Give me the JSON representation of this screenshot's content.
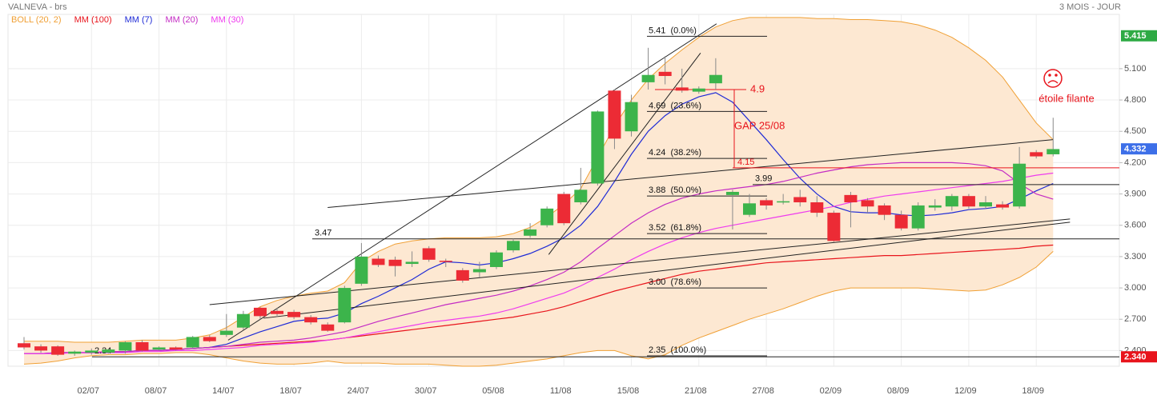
{
  "chart_data": {
    "type": "candlestick",
    "title": "VALNEVA - brs",
    "subtitle": "3 MOIS - JOUR",
    "categories": [
      null,
      null,
      null,
      null,
      "02/07",
      null,
      null,
      null,
      "08/07",
      null,
      null,
      null,
      "14/07",
      null,
      null,
      null,
      "18/07",
      null,
      null,
      null,
      "24/07",
      null,
      null,
      null,
      "30/07",
      null,
      null,
      null,
      "05/08",
      null,
      null,
      null,
      "11/08",
      null,
      null,
      null,
      "15/08",
      null,
      null,
      null,
      "21/08",
      null,
      null,
      null,
      "27/08",
      null,
      null,
      null,
      "02/09",
      null,
      null,
      null,
      "08/09",
      null,
      null,
      null,
      "12/09",
      null,
      null,
      null,
      "18/09",
      null
    ],
    "open": [
      2.47,
      2.44,
      2.44,
      2.37,
      2.38,
      2.38,
      2.4,
      2.48,
      2.41,
      2.43,
      2.43,
      2.53,
      2.55,
      2.62,
      2.81,
      2.78,
      2.77,
      2.72,
      2.65,
      2.67,
      3.04,
      3.28,
      3.27,
      3.23,
      3.38,
      3.26,
      3.17,
      3.15,
      3.2,
      3.36,
      3.5,
      3.6,
      3.9,
      3.82,
      4.0,
      4.89,
      4.5,
      4.97,
      5.07,
      4.92,
      4.88,
      4.96,
      3.89,
      3.7,
      3.84,
      3.82,
      3.87,
      3.82,
      3.72,
      3.89,
      3.84,
      3.79,
      3.7,
      3.57,
      3.77,
      3.78,
      3.88,
      3.78,
      3.8,
      3.78,
      4.3,
      4.28
    ],
    "high": [
      2.53,
      2.46,
      2.45,
      2.4,
      2.42,
      2.42,
      2.49,
      2.5,
      2.44,
      2.44,
      2.54,
      2.55,
      2.75,
      2.78,
      2.82,
      2.81,
      2.79,
      2.74,
      2.67,
      3.02,
      3.43,
      3.31,
      3.3,
      3.35,
      3.4,
      3.28,
      3.19,
      3.25,
      3.36,
      3.47,
      3.62,
      3.78,
      3.92,
      4.15,
      4.7,
      4.9,
      4.85,
      5.3,
      5.22,
      5.1,
      4.93,
      5.2,
      3.94,
      3.9,
      3.86,
      3.9,
      3.94,
      3.88,
      3.74,
      3.92,
      3.86,
      3.81,
      3.74,
      3.82,
      3.85,
      3.9,
      3.9,
      3.88,
      3.83,
      4.35,
      4.32,
      4.63
    ],
    "low": [
      2.41,
      2.38,
      2.35,
      2.35,
      2.36,
      2.37,
      2.37,
      2.39,
      2.4,
      2.4,
      2.42,
      2.48,
      2.53,
      2.6,
      2.7,
      2.72,
      2.7,
      2.65,
      2.58,
      2.66,
      3.02,
      3.2,
      3.11,
      3.2,
      3.25,
      3.2,
      3.05,
      3.1,
      3.18,
      3.34,
      3.48,
      3.58,
      3.6,
      3.8,
      3.98,
      4.33,
      4.45,
      4.9,
      4.95,
      4.87,
      4.86,
      4.9,
      3.56,
      3.68,
      3.75,
      3.8,
      3.78,
      3.68,
      3.44,
      3.58,
      3.72,
      3.65,
      3.55,
      3.55,
      3.74,
      3.74,
      3.76,
      3.76,
      3.75,
      3.76,
      4.24,
      4.26
    ],
    "close": [
      2.43,
      2.4,
      2.36,
      2.39,
      2.4,
      2.41,
      2.48,
      2.4,
      2.43,
      2.41,
      2.53,
      2.49,
      2.59,
      2.75,
      2.73,
      2.75,
      2.72,
      2.67,
      2.59,
      3.0,
      3.3,
      3.22,
      3.21,
      3.25,
      3.27,
      3.25,
      3.07,
      3.18,
      3.34,
      3.45,
      3.56,
      3.76,
      3.62,
      3.94,
      4.69,
      4.43,
      4.78,
      5.04,
      5.03,
      4.89,
      4.91,
      5.04,
      3.92,
      3.81,
      3.79,
      3.83,
      3.82,
      3.72,
      3.45,
      3.82,
      3.78,
      3.7,
      3.57,
      3.79,
      3.79,
      3.88,
      3.78,
      3.82,
      3.77,
      4.19,
      4.26,
      4.33
    ],
    "up_color": "#3cb44b",
    "down_color": "#ec2b35",
    "series": [
      {
        "name": "BOLL (20, 2)",
        "color": "#f0a035",
        "fill": "#fde8d2",
        "upper": [
          2.49,
          2.49,
          2.49,
          2.48,
          2.48,
          2.48,
          2.49,
          2.5,
          2.5,
          2.5,
          2.52,
          2.55,
          2.62,
          2.72,
          2.82,
          2.88,
          2.92,
          2.95,
          2.97,
          3.05,
          3.25,
          3.35,
          3.42,
          3.45,
          3.47,
          3.48,
          3.48,
          3.48,
          3.49,
          3.52,
          3.58,
          3.68,
          3.8,
          3.95,
          4.25,
          4.55,
          4.8,
          5.0,
          5.15,
          5.28,
          5.4,
          5.5,
          5.56,
          5.59,
          5.59,
          5.59,
          5.59,
          5.58,
          5.58,
          5.57,
          5.57,
          5.56,
          5.55,
          5.52,
          5.47,
          5.4,
          5.3,
          5.18,
          5.02,
          4.8,
          4.58,
          4.42
        ],
        "lower": [
          2.27,
          2.28,
          2.3,
          2.33,
          2.35,
          2.36,
          2.36,
          2.37,
          2.37,
          2.38,
          2.38,
          2.36,
          2.33,
          2.3,
          2.28,
          2.27,
          2.27,
          2.28,
          2.3,
          2.28,
          2.28,
          2.28,
          2.27,
          2.27,
          2.27,
          2.26,
          2.25,
          2.25,
          2.26,
          2.28,
          2.3,
          2.32,
          2.35,
          2.38,
          2.4,
          2.4,
          2.35,
          2.32,
          2.36,
          2.45,
          2.52,
          2.58,
          2.64,
          2.7,
          2.75,
          2.8,
          2.86,
          2.92,
          2.97,
          3.0,
          3.0,
          3.0,
          3.0,
          3.0,
          2.99,
          2.98,
          2.97,
          2.98,
          3.03,
          3.1,
          3.2,
          3.35
        ]
      },
      {
        "name": "MM (100)",
        "color": "#e8141c",
        "values": [
          2.37,
          2.37,
          2.38,
          2.38,
          2.38,
          2.39,
          2.39,
          2.4,
          2.4,
          2.41,
          2.42,
          2.43,
          2.44,
          2.45,
          2.46,
          2.47,
          2.48,
          2.49,
          2.5,
          2.52,
          2.54,
          2.56,
          2.58,
          2.6,
          2.62,
          2.64,
          2.66,
          2.68,
          2.7,
          2.72,
          2.75,
          2.78,
          2.82,
          2.87,
          2.92,
          2.97,
          3.01,
          3.05,
          3.09,
          3.13,
          3.16,
          3.18,
          3.2,
          3.22,
          3.24,
          3.25,
          3.26,
          3.27,
          3.28,
          3.29,
          3.3,
          3.31,
          3.31,
          3.32,
          3.33,
          3.34,
          3.35,
          3.36,
          3.37,
          3.38,
          3.4,
          3.41
        ]
      },
      {
        "name": "MM (7)",
        "color": "#1f2bd6",
        "values": [
          2.37,
          2.37,
          2.38,
          2.38,
          2.38,
          2.38,
          2.39,
          2.4,
          2.4,
          2.41,
          2.42,
          2.43,
          2.46,
          2.52,
          2.58,
          2.63,
          2.68,
          2.7,
          2.71,
          2.76,
          2.85,
          2.92,
          3.0,
          3.08,
          3.18,
          3.25,
          3.24,
          3.22,
          3.24,
          3.28,
          3.33,
          3.4,
          3.48,
          3.6,
          3.78,
          4.02,
          4.28,
          4.5,
          4.65,
          4.76,
          4.83,
          4.87,
          4.78,
          4.6,
          4.42,
          4.23,
          4.05,
          3.9,
          3.78,
          3.73,
          3.72,
          3.72,
          3.7,
          3.69,
          3.7,
          3.72,
          3.75,
          3.76,
          3.78,
          3.85,
          3.93,
          4.0
        ]
      },
      {
        "name": "MM (20)",
        "color": "#c42cc4",
        "values": [
          2.37,
          2.37,
          2.38,
          2.38,
          2.38,
          2.39,
          2.39,
          2.4,
          2.4,
          2.41,
          2.42,
          2.43,
          2.44,
          2.46,
          2.48,
          2.49,
          2.5,
          2.52,
          2.55,
          2.58,
          2.63,
          2.68,
          2.72,
          2.76,
          2.8,
          2.84,
          2.87,
          2.9,
          2.93,
          2.97,
          3.02,
          3.08,
          3.15,
          3.25,
          3.38,
          3.5,
          3.62,
          3.72,
          3.8,
          3.86,
          3.9,
          3.93,
          3.95,
          3.97,
          3.99,
          4.02,
          4.06,
          4.1,
          4.13,
          4.16,
          4.18,
          4.19,
          4.2,
          4.2,
          4.2,
          4.2,
          4.19,
          4.17,
          4.12,
          4.0,
          3.9,
          3.85
        ]
      },
      {
        "name": "MM (30)",
        "color": "#ee3cee",
        "values": [
          2.37,
          2.37,
          2.37,
          2.38,
          2.38,
          2.38,
          2.38,
          2.39,
          2.39,
          2.4,
          2.4,
          2.41,
          2.42,
          2.43,
          2.45,
          2.46,
          2.47,
          2.48,
          2.5,
          2.52,
          2.55,
          2.58,
          2.61,
          2.64,
          2.67,
          2.69,
          2.71,
          2.73,
          2.76,
          2.8,
          2.85,
          2.9,
          2.95,
          3.02,
          3.1,
          3.18,
          3.27,
          3.35,
          3.42,
          3.48,
          3.53,
          3.57,
          3.6,
          3.63,
          3.66,
          3.69,
          3.72,
          3.75,
          3.78,
          3.82,
          3.85,
          3.88,
          3.9,
          3.92,
          3.94,
          3.96,
          3.98,
          4.0,
          4.02,
          4.05,
          4.08,
          4.1
        ]
      }
    ],
    "ylim": [
      2.25,
      5.62
    ],
    "yticks": [
      {
        "value": 2.4,
        "label": "2.400"
      },
      {
        "value": 2.7,
        "label": "2.700"
      },
      {
        "value": 3.0,
        "label": "3.000"
      },
      {
        "value": 3.3,
        "label": "3.300"
      },
      {
        "value": 3.6,
        "label": "3.600"
      },
      {
        "value": 3.9,
        "label": "3.900"
      },
      {
        "value": 4.2,
        "label": "4.200"
      },
      {
        "value": 4.5,
        "label": "4.500"
      },
      {
        "value": 4.8,
        "label": "4.800"
      },
      {
        "value": 5.1,
        "label": "5.100"
      }
    ],
    "grid": true,
    "price_tags": [
      {
        "value": 5.415,
        "color": "#2eaa44"
      },
      {
        "value": 4.332,
        "color": "#3d6fe8"
      },
      {
        "value": 2.34,
        "label": "2.340",
        "color": "#e8141c"
      }
    ],
    "fibonacci": [
      {
        "value": 5.41,
        "label": "5.41  (0.0%)"
      },
      {
        "value": 4.69,
        "label": "4.69  (23.6%)"
      },
      {
        "value": 4.24,
        "label": "4.24  (38.2%)"
      },
      {
        "value": 3.88,
        "label": "3.88  (50.0%)"
      },
      {
        "value": 3.52,
        "label": "3.52  (61.8%)"
      },
      {
        "value": 3.0,
        "label": "3.00  (78.6%)"
      },
      {
        "value": 2.35,
        "label": "2.35  (100.0%)"
      }
    ],
    "levels": [
      3.47,
      2.34,
      3.99
    ],
    "gap": {
      "label": "GAP 25/08",
      "top": 4.9,
      "bottom": 4.15
    },
    "trend_lines": [
      {
        "from": [
          12.1,
          2.5
        ],
        "to": [
          41.05,
          5.53
        ]
      },
      {
        "from": [
          31.1,
          3.32
        ],
        "to": [
          40.1,
          5.25
        ]
      },
      {
        "from": [
          18,
          3.77
        ],
        "to": [
          61,
          4.42
        ]
      },
      {
        "from": [
          11,
          2.84
        ],
        "to": [
          62,
          3.66
        ]
      },
      {
        "from": [
          14.2,
          2.71
        ],
        "to": [
          62,
          3.63
        ]
      }
    ],
    "pattern": "étoile filante"
  }
}
